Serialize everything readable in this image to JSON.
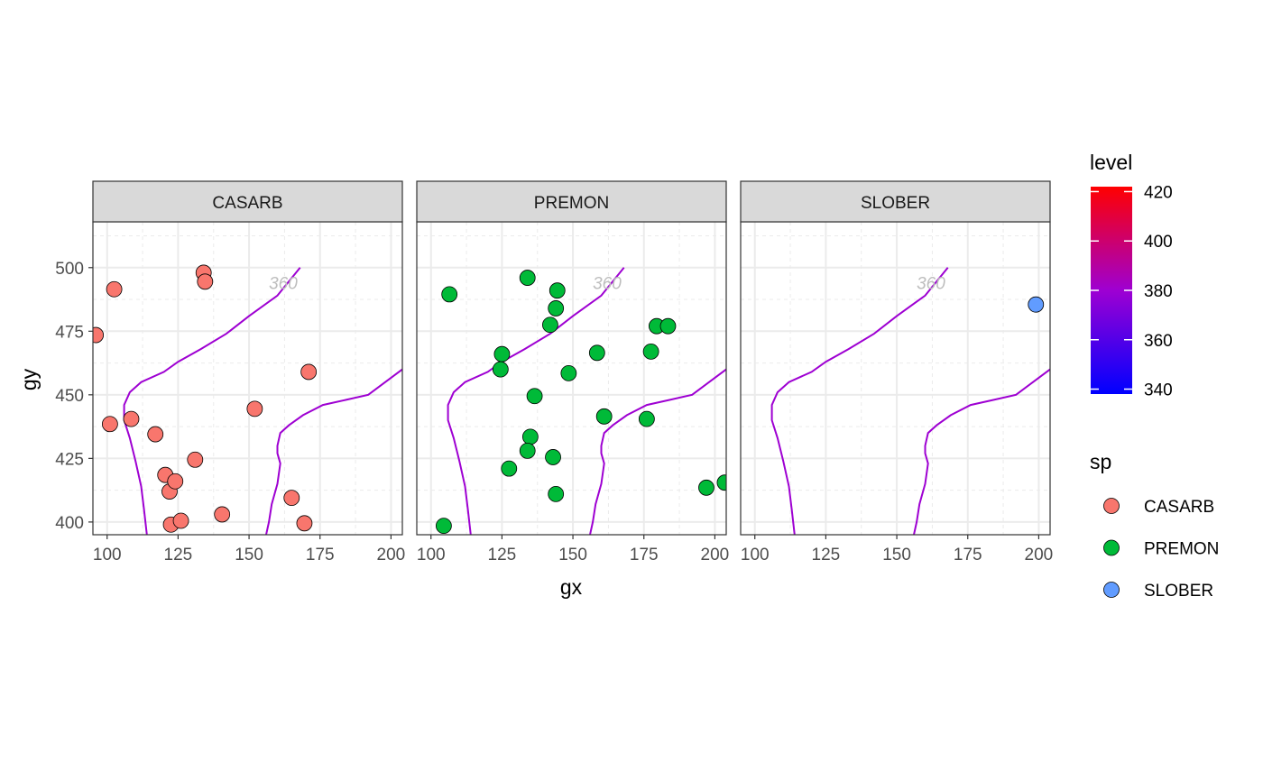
{
  "chart_data": {
    "type": "scatter",
    "xlabel": "gx",
    "ylabel": "gy",
    "xlim": [
      95,
      204
    ],
    "ylim": [
      395,
      518
    ],
    "x_ticks": [
      100,
      125,
      150,
      175,
      200
    ],
    "y_ticks": [
      400,
      425,
      450,
      475,
      500
    ],
    "grid": true,
    "contour": {
      "color": "#9e00d2",
      "label": "360",
      "label_pos": [
        157,
        494
      ],
      "left_line": [
        [
          168,
          500
        ],
        [
          160,
          489
        ],
        [
          150,
          481
        ],
        [
          142,
          474
        ],
        [
          133,
          468
        ],
        [
          125,
          463
        ],
        [
          120,
          459
        ],
        [
          112,
          455
        ],
        [
          108,
          451
        ],
        [
          106,
          446
        ],
        [
          106,
          440
        ],
        [
          108,
          433
        ],
        [
          110,
          424
        ],
        [
          112,
          414
        ],
        [
          113,
          405
        ],
        [
          114,
          395
        ]
      ],
      "right_line": [
        [
          204,
          460
        ],
        [
          198,
          455
        ],
        [
          192,
          450
        ],
        [
          184,
          448
        ],
        [
          176,
          446
        ],
        [
          169,
          442
        ],
        [
          164,
          438
        ],
        [
          161,
          435
        ],
        [
          160,
          430
        ],
        [
          160,
          427
        ],
        [
          161,
          423
        ],
        [
          160,
          415
        ],
        [
          158,
          407
        ],
        [
          157,
          400
        ],
        [
          156,
          395
        ]
      ]
    },
    "panels": [
      {
        "name": "CASARB",
        "color": "#f8766d",
        "points": [
          [
            96,
            473.5
          ],
          [
            102.5,
            491.5
          ],
          [
            101,
            438.5
          ],
          [
            108.5,
            440.5
          ],
          [
            117,
            434.5
          ],
          [
            120.5,
            418.5
          ],
          [
            122,
            412
          ],
          [
            124,
            416
          ],
          [
            122.5,
            399
          ],
          [
            126,
            400.5
          ],
          [
            131,
            424.5
          ],
          [
            134,
            498
          ],
          [
            134.5,
            494.5
          ],
          [
            140.5,
            403
          ],
          [
            152,
            444.5
          ],
          [
            171,
            459
          ],
          [
            165,
            409.5
          ],
          [
            169.5,
            399.5
          ]
        ]
      },
      {
        "name": "PREMON",
        "color": "#00ba38",
        "points": [
          [
            106.5,
            489.5
          ],
          [
            104.5,
            398.5
          ],
          [
            134,
            496
          ],
          [
            144.5,
            491
          ],
          [
            144,
            484
          ],
          [
            142,
            477.5
          ],
          [
            125,
            466
          ],
          [
            124.5,
            460
          ],
          [
            136.5,
            449.5
          ],
          [
            148.5,
            458.5
          ],
          [
            158.5,
            466.5
          ],
          [
            179.5,
            477
          ],
          [
            183.5,
            477
          ],
          [
            177.5,
            467
          ],
          [
            161,
            441.5
          ],
          [
            176,
            440.5
          ],
          [
            135,
            433.5
          ],
          [
            134,
            428
          ],
          [
            143,
            425.5
          ],
          [
            127.5,
            421
          ],
          [
            144,
            411
          ],
          [
            197,
            413.5
          ],
          [
            203.5,
            415.5
          ]
        ]
      },
      {
        "name": "SLOBER",
        "color": "#619cff",
        "points": [
          [
            199,
            485.5
          ]
        ]
      }
    ],
    "legend_level": {
      "title": "level",
      "min": 338,
      "max": 422,
      "ticks": [
        340,
        360,
        380,
        400,
        420
      ],
      "colors": [
        "#0000ff",
        "#9e00d2",
        "#ff0000"
      ]
    },
    "legend_sp": {
      "title": "sp",
      "entries": [
        {
          "label": "CASARB",
          "color": "#f8766d"
        },
        {
          "label": "PREMON",
          "color": "#00ba38"
        },
        {
          "label": "SLOBER",
          "color": "#619cff"
        }
      ]
    }
  }
}
